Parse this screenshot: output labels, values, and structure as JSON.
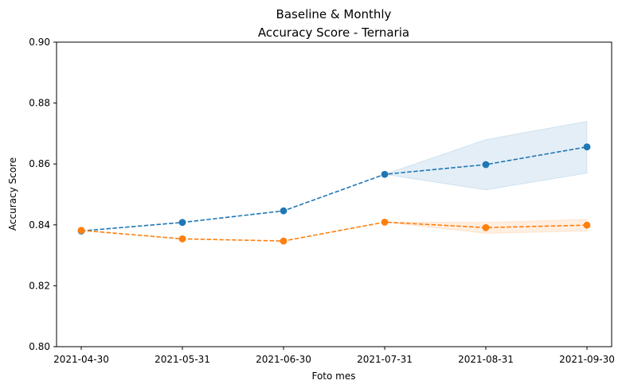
{
  "chart_data": {
    "type": "line",
    "title_line1": "Baseline & Monthly",
    "title_line2": "Accuracy Score - Ternaria",
    "xlabel": "Foto mes",
    "ylabel": "Accuracy Score",
    "categories": [
      "2021-04-30",
      "2021-05-31",
      "2021-06-30",
      "2021-07-31",
      "2021-08-31",
      "2021-09-30"
    ],
    "ylim": [
      0.8,
      0.9
    ],
    "yticks": [
      "0.80",
      "0.82",
      "0.84",
      "0.86",
      "0.88",
      "0.90"
    ],
    "grid": false,
    "legend": "none",
    "series": [
      {
        "color": "#1f77b4",
        "values": [
          0.838,
          0.8408,
          0.8446,
          0.8566,
          0.8598,
          0.8656
        ],
        "band_upper": [
          null,
          null,
          null,
          0.8566,
          0.868,
          0.874
        ],
        "band_lower": [
          null,
          null,
          null,
          0.8566,
          0.8515,
          0.857
        ]
      },
      {
        "color": "#ff7f0e",
        "values": [
          0.8382,
          0.8354,
          0.8347,
          0.8409,
          0.8391,
          0.8399
        ],
        "band_upper": [
          null,
          null,
          null,
          0.8409,
          0.8408,
          0.8418
        ],
        "band_lower": [
          null,
          null,
          null,
          0.8409,
          0.8372,
          0.838
        ]
      }
    ]
  }
}
